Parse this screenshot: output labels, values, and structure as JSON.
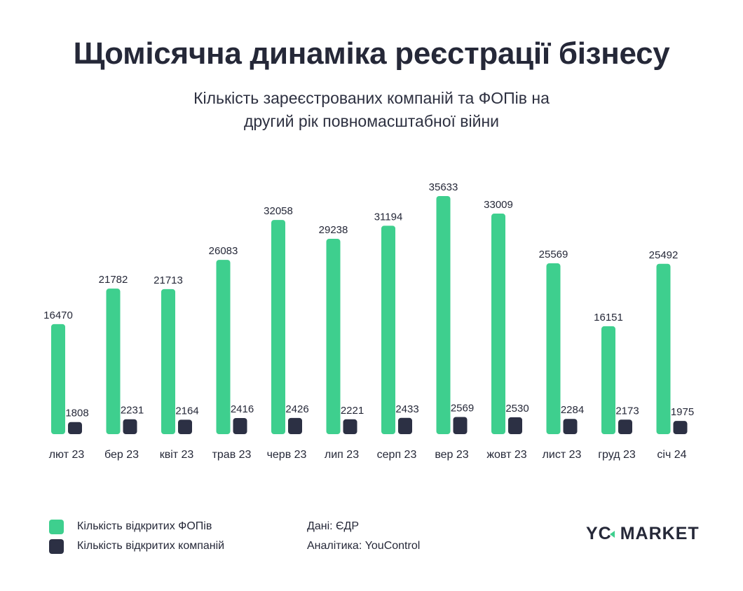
{
  "header": {
    "title": "Щомісячна динаміка реєстрації бізнесу",
    "subtitle_line1": "Кількість зареєстрованих компаній та ФОПів на",
    "subtitle_line2": "другий рік повномасштабної війни"
  },
  "colors": {
    "fop": "#3ecf8e",
    "companies": "#2c3044",
    "text": "#252838"
  },
  "chart_data": {
    "type": "bar",
    "title": "Щомісячна динаміка реєстрації бізнесу",
    "subtitle": "Кількість зареєстрованих компаній та ФОПів на другий рік повномасштабної війни",
    "xlabel": "",
    "ylabel": "",
    "grid": false,
    "ylim": [
      0,
      36000
    ],
    "legend_position": "bottom-left",
    "categories": [
      "лют 23",
      "бер 23",
      "квіт 23",
      "трав 23",
      "черв 23",
      "лип 23",
      "серп 23",
      "вер 23",
      "жовт 23",
      "лист 23",
      "груд 23",
      "січ 24"
    ],
    "series": [
      {
        "name": "Кількість відкритих ФОПів",
        "color": "#3ecf8e",
        "values": [
          16470,
          21782,
          21713,
          26083,
          32058,
          29238,
          31194,
          35633,
          33009,
          25569,
          16151,
          25492
        ]
      },
      {
        "name": "Кількість відкритих компаній",
        "color": "#2c3044",
        "values": [
          1808,
          2231,
          2164,
          2416,
          2426,
          2221,
          2433,
          2569,
          2530,
          2284,
          2173,
          1975
        ]
      }
    ]
  },
  "legend": {
    "items": [
      {
        "label": "Кількість відкритих ФОПів"
      },
      {
        "label": "Кількість відкритих компаній"
      }
    ]
  },
  "footer": {
    "source": "Дані: ЄДР",
    "analytics": "Аналітика: YouControl",
    "logo_left": "YC",
    "logo_right": "MARKET"
  }
}
